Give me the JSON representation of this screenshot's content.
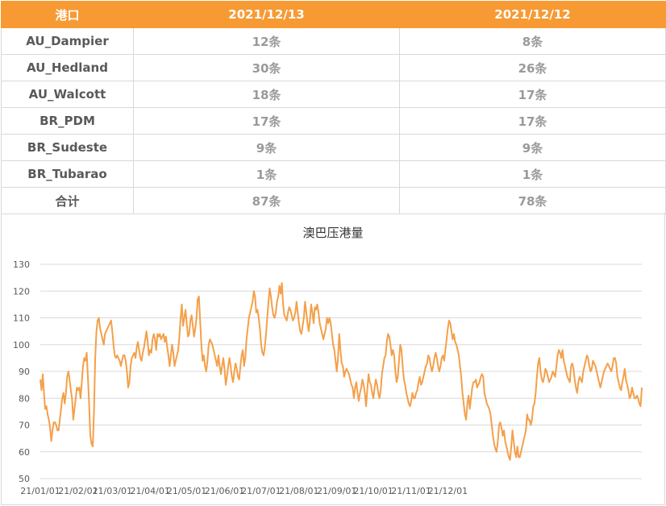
{
  "table": {
    "headers": [
      "港口",
      "2021/12/13",
      "2021/12/12"
    ],
    "rows": [
      {
        "port": "AU_Dampier",
        "d1213": "12条",
        "d1212": "8条"
      },
      {
        "port": "AU_Hedland",
        "d1213": "30条",
        "d1212": "26条"
      },
      {
        "port": "AU_Walcott",
        "d1213": "18条",
        "d1212": "17条"
      },
      {
        "port": "BR_PDM",
        "d1213": "17条",
        "d1212": "17条"
      },
      {
        "port": "BR_Sudeste",
        "d1213": "9条",
        "d1212": "9条"
      },
      {
        "port": "BR_Tubarao",
        "d1213": "1条",
        "d1212": "1条"
      },
      {
        "port": "合计",
        "d1213": "87条",
        "d1212": "78条"
      }
    ]
  },
  "colors": {
    "header_bg": "#f79a33",
    "line": "#f4a04a",
    "grid": "#d9d9d9"
  },
  "chart_data": {
    "type": "line",
    "title": "澳巴压港量",
    "xlabel": "",
    "ylabel": "",
    "ylim": [
      50,
      130
    ],
    "yticks": [
      "50",
      "60",
      "70",
      "80",
      "90",
      "100",
      "110",
      "120",
      "130"
    ],
    "xticks": [
      "21/01/01",
      "21/02/01",
      "21/03/01",
      "21/04/01",
      "21/05/01",
      "21/06/01",
      "21/07/01",
      "21/08/01",
      "21/09/01",
      "21/10/01",
      "21/11/01",
      "21/12/01"
    ],
    "grid": "horizontal",
    "legend": "none",
    "series": [
      {
        "x_day_start": "2021-01-01",
        "values": [
          87,
          83,
          89,
          82,
          76,
          77,
          74,
          72,
          69,
          64,
          68,
          71,
          71,
          70,
          68,
          68,
          72,
          76,
          80,
          82,
          78,
          82,
          88,
          90,
          87,
          83,
          80,
          72,
          76,
          80,
          84,
          83,
          84,
          80,
          86,
          92,
          95,
          94,
          97,
          88,
          78,
          66,
          63,
          62,
          75,
          95,
          105,
          109,
          110,
          106,
          104,
          102,
          100,
          104,
          105,
          106,
          107,
          108,
          109,
          105,
          100,
          96,
          95,
          96,
          95,
          94,
          92,
          94,
          96,
          96,
          94,
          90,
          84,
          86,
          92,
          95,
          96,
          97,
          95,
          99,
          101,
          98,
          95,
          94,
          97,
          99,
          102,
          105,
          101,
          96,
          98,
          97,
          102,
          104,
          102,
          98,
          104,
          103,
          104,
          102,
          103,
          104,
          101,
          103,
          99,
          96,
          92,
          96,
          100,
          97,
          92,
          94,
          96,
          98,
          103,
          110,
          115,
          107,
          110,
          113,
          108,
          103,
          104,
          109,
          111,
          107,
          103,
          106,
          110,
          117,
          118,
          109,
          100,
          94,
          96,
          92,
          90,
          94,
          100,
          102,
          101,
          100,
          98,
          96,
          94,
          92,
          96,
          92,
          89,
          92,
          95,
          91,
          85,
          88,
          92,
          95,
          92,
          88,
          86,
          90,
          93,
          91,
          88,
          87,
          92,
          96,
          98,
          92,
          95,
          102,
          106,
          110,
          112,
          114,
          116,
          120,
          118,
          112,
          113,
          110,
          106,
          100,
          97,
          96,
          99,
          104,
          110,
          116,
          121,
          118,
          114,
          111,
          110,
          112,
          116,
          118,
          122,
          119,
          123,
          115,
          111,
          110,
          109,
          112,
          114,
          113,
          111,
          109,
          110,
          112,
          116,
          112,
          108,
          105,
          104,
          107,
          110,
          116,
          112,
          108,
          105,
          109,
          115,
          112,
          108,
          114,
          113,
          115,
          112,
          108,
          106,
          104,
          102,
          104,
          106,
          110,
          108,
          110,
          108,
          104,
          100,
          98,
          94,
          90,
          95,
          104,
          98,
          93,
          92,
          88,
          90,
          91,
          90,
          89,
          87,
          85,
          84,
          80,
          84,
          86,
          82,
          79,
          82,
          84,
          87,
          85,
          82,
          77,
          83,
          89,
          86,
          85,
          82,
          80,
          84,
          87,
          85,
          82,
          80,
          83,
          89,
          92,
          95,
          96,
          101,
          104,
          103,
          100,
          96,
          98,
          96,
          90,
          86,
          88,
          94,
          100,
          98,
          92,
          87,
          85,
          82,
          80,
          78,
          77,
          79,
          82,
          80,
          80,
          82,
          83,
          86,
          88,
          85,
          86,
          88,
          90,
          92,
          93,
          96,
          95,
          92,
          90,
          92,
          95,
          97,
          95,
          92,
          90,
          92,
          95,
          96,
          94,
          98,
          102,
          106,
          109,
          108,
          105,
          102,
          104,
          101,
          100,
          98,
          96,
          92,
          88,
          82,
          78,
          74,
          72,
          78,
          81,
          76,
          80,
          84,
          86,
          86,
          87,
          84,
          85,
          86,
          88,
          89,
          88,
          82,
          80,
          78,
          77,
          76,
          74,
          70,
          66,
          63,
          61,
          60,
          64,
          70,
          71,
          69,
          66,
          68,
          64,
          62,
          60,
          58,
          57,
          62,
          68,
          64,
          60,
          58,
          62,
          58,
          58,
          60,
          62,
          64,
          66,
          68,
          74,
          72,
          72,
          70,
          72,
          77,
          78,
          82,
          88,
          93,
          95,
          90,
          87,
          86,
          88,
          91,
          90,
          88,
          86,
          87,
          88,
          90,
          89,
          88,
          92,
          96,
          98,
          97,
          95,
          98,
          94,
          92,
          90,
          88,
          87,
          86,
          92,
          93,
          91,
          87,
          84,
          82,
          86,
          88,
          87,
          86,
          90,
          92,
          94,
          96,
          95,
          92,
          90,
          91,
          94,
          93,
          92,
          90,
          88,
          86,
          84,
          86,
          88,
          90,
          91,
          92,
          93,
          92,
          91,
          90,
          92,
          95,
          95,
          93,
          88,
          86,
          84,
          83,
          86,
          88,
          91,
          87,
          85,
          83,
          80,
          81,
          84,
          82,
          80,
          80,
          81,
          80,
          78,
          77,
          84
        ]
      }
    ]
  }
}
